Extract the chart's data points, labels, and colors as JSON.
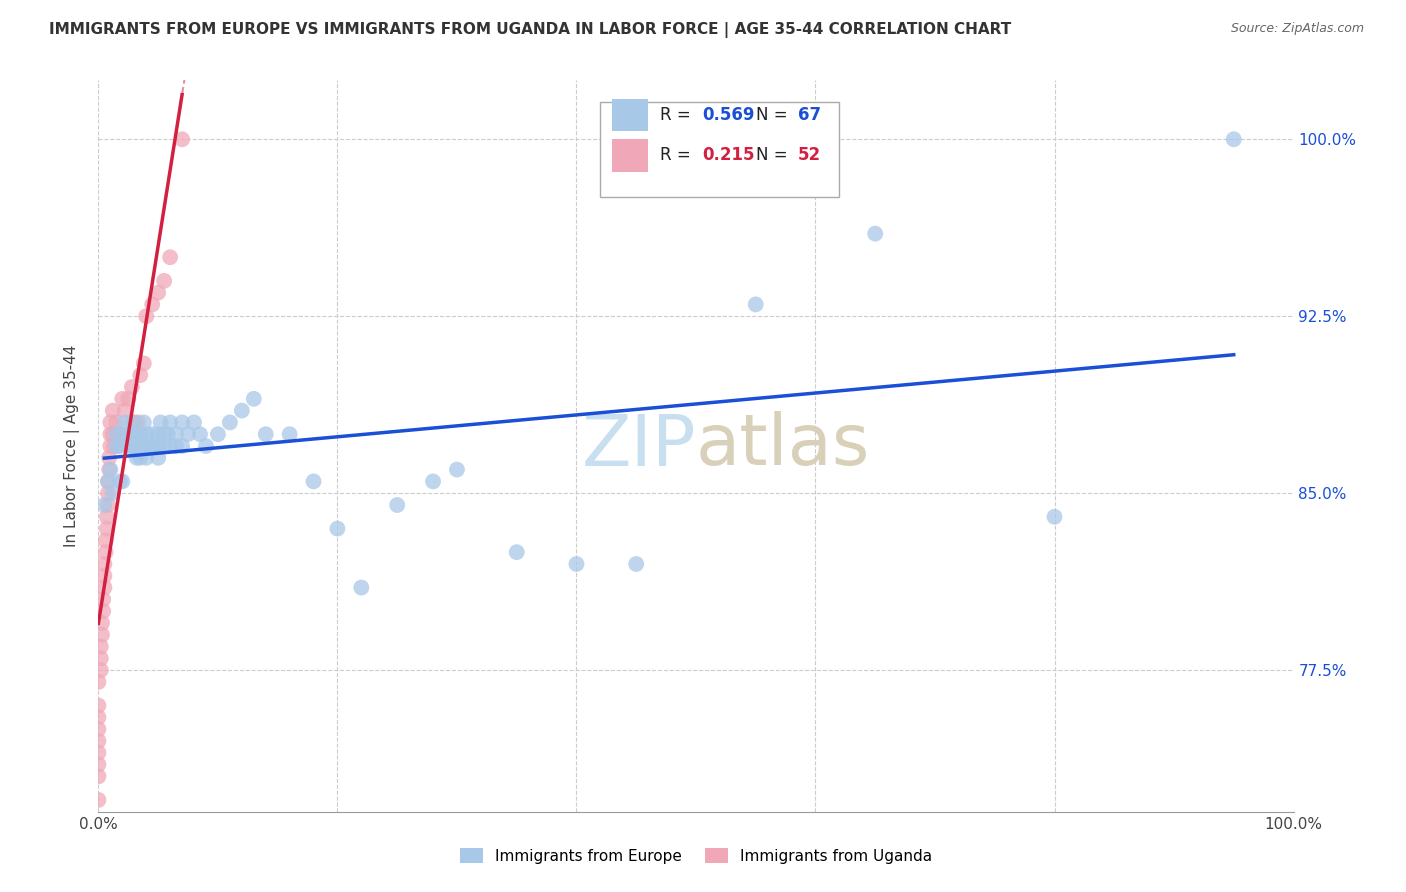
{
  "title": "IMMIGRANTS FROM EUROPE VS IMMIGRANTS FROM UGANDA IN LABOR FORCE | AGE 35-44 CORRELATION CHART",
  "source": "Source: ZipAtlas.com",
  "ylabel": "In Labor Force | Age 35-44",
  "xlim": [
    0.0,
    1.0
  ],
  "ylim": [
    0.715,
    1.025
  ],
  "xtick_positions": [
    0.0,
    0.2,
    0.4,
    0.6,
    0.8,
    1.0
  ],
  "xticklabels": [
    "0.0%",
    "",
    "",
    "",
    "",
    "100.0%"
  ],
  "ytick_positions": [
    0.775,
    0.85,
    0.925,
    1.0
  ],
  "ytick_labels": [
    "77.5%",
    "85.0%",
    "92.5%",
    "100.0%"
  ],
  "legend_europe_r": "0.569",
  "legend_europe_n": "67",
  "legend_uganda_r": "0.215",
  "legend_uganda_n": "52",
  "europe_color": "#a8c8e8",
  "uganda_color": "#f0a8b8",
  "europe_line_color": "#1a4fd6",
  "uganda_line_color": "#d42040",
  "watermark_zip": "ZIP",
  "watermark_atlas": "atlas",
  "legend_label_europe": "Immigrants from Europe",
  "legend_label_uganda": "Immigrants from Uganda",
  "europe_scatter_x": [
    0.005,
    0.008,
    0.01,
    0.012,
    0.015,
    0.015,
    0.018,
    0.018,
    0.02,
    0.02,
    0.022,
    0.025,
    0.025,
    0.028,
    0.028,
    0.03,
    0.03,
    0.032,
    0.032,
    0.035,
    0.035,
    0.035,
    0.038,
    0.038,
    0.04,
    0.04,
    0.04,
    0.042,
    0.045,
    0.045,
    0.048,
    0.05,
    0.05,
    0.05,
    0.052,
    0.055,
    0.055,
    0.058,
    0.06,
    0.06,
    0.065,
    0.065,
    0.07,
    0.07,
    0.075,
    0.08,
    0.085,
    0.09,
    0.1,
    0.11,
    0.12,
    0.13,
    0.14,
    0.16,
    0.18,
    0.2,
    0.22,
    0.25,
    0.28,
    0.3,
    0.35,
    0.4,
    0.45,
    0.55,
    0.65,
    0.8,
    0.95
  ],
  "europe_scatter_y": [
    0.845,
    0.855,
    0.86,
    0.85,
    0.875,
    0.87,
    0.87,
    0.855,
    0.875,
    0.855,
    0.88,
    0.875,
    0.87,
    0.87,
    0.88,
    0.875,
    0.87,
    0.865,
    0.875,
    0.875,
    0.87,
    0.865,
    0.88,
    0.87,
    0.875,
    0.87,
    0.865,
    0.87,
    0.875,
    0.87,
    0.87,
    0.875,
    0.87,
    0.865,
    0.88,
    0.875,
    0.87,
    0.875,
    0.88,
    0.87,
    0.875,
    0.87,
    0.88,
    0.87,
    0.875,
    0.88,
    0.875,
    0.87,
    0.875,
    0.88,
    0.885,
    0.89,
    0.875,
    0.875,
    0.855,
    0.835,
    0.81,
    0.845,
    0.855,
    0.86,
    0.825,
    0.82,
    0.82,
    0.93,
    0.96,
    0.84,
    1.0
  ],
  "uganda_scatter_x": [
    0.0,
    0.0,
    0.0,
    0.0,
    0.0,
    0.0,
    0.0,
    0.0,
    0.0,
    0.002,
    0.002,
    0.002,
    0.003,
    0.003,
    0.004,
    0.004,
    0.005,
    0.005,
    0.005,
    0.006,
    0.006,
    0.007,
    0.007,
    0.008,
    0.008,
    0.008,
    0.009,
    0.009,
    0.01,
    0.01,
    0.01,
    0.012,
    0.012,
    0.013,
    0.015,
    0.015,
    0.016,
    0.018,
    0.02,
    0.022,
    0.025,
    0.028,
    0.03,
    0.033,
    0.035,
    0.038,
    0.04,
    0.045,
    0.05,
    0.055,
    0.06,
    0.07
  ],
  "uganda_scatter_y": [
    0.72,
    0.73,
    0.735,
    0.74,
    0.745,
    0.75,
    0.755,
    0.76,
    0.77,
    0.775,
    0.78,
    0.785,
    0.79,
    0.795,
    0.8,
    0.805,
    0.81,
    0.815,
    0.82,
    0.825,
    0.83,
    0.835,
    0.84,
    0.845,
    0.85,
    0.855,
    0.86,
    0.865,
    0.87,
    0.875,
    0.88,
    0.885,
    0.875,
    0.87,
    0.88,
    0.875,
    0.87,
    0.875,
    0.89,
    0.885,
    0.89,
    0.895,
    0.88,
    0.88,
    0.9,
    0.905,
    0.925,
    0.93,
    0.935,
    0.94,
    0.95,
    1.0
  ]
}
